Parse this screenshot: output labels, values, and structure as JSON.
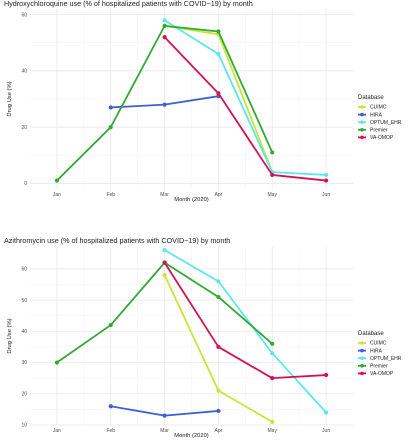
{
  "colors": {
    "CUIMC": "#c8e633",
    "HIRA": "#3f5fd3",
    "OPTUM_EHR": "#5ce7ec",
    "Premier": "#33a833",
    "VA-OMOP": "#d3134f"
  },
  "legend": {
    "title": "Database",
    "items": [
      "CUIMC",
      "HIRA",
      "OPTUM_EHR",
      "Premier",
      "VA-OMOP"
    ]
  },
  "chart_data": [
    {
      "type": "line",
      "title": "Hydroxychloroquine use (% of hospitalized patients with COVID−19) by month",
      "xlabel": "Month (2020)",
      "ylabel": "Drug Use (%)",
      "categories": [
        "Jan",
        "Feb",
        "Mar",
        "Apr",
        "May",
        "Jun"
      ],
      "ylim": [
        -2,
        62
      ],
      "yticks": [
        0,
        20,
        40,
        60
      ],
      "grid": true,
      "legend_position": "right",
      "series": [
        {
          "name": "CUIMC",
          "values": [
            null,
            null,
            56,
            53,
            4,
            null
          ]
        },
        {
          "name": "HIRA",
          "values": [
            null,
            27,
            28,
            31,
            null,
            null
          ]
        },
        {
          "name": "OPTUM_EHR",
          "values": [
            null,
            null,
            58,
            46,
            4,
            3
          ]
        },
        {
          "name": "Premier",
          "values": [
            1,
            20,
            56,
            54,
            11,
            null
          ]
        },
        {
          "name": "VA-OMOP",
          "values": [
            null,
            null,
            52,
            32,
            3,
            1
          ]
        }
      ]
    },
    {
      "type": "line",
      "title": "Azithromycin  use (% of hospitalized patients with COVID−19) by month",
      "xlabel": "Month (2020)",
      "ylabel": "Drug Use (%)",
      "categories": [
        "Jan",
        "Feb",
        "Mar",
        "Apr",
        "May",
        "Jun"
      ],
      "ylim": [
        10,
        67
      ],
      "yticks": [
        10,
        20,
        30,
        40,
        50,
        60
      ],
      "grid": true,
      "legend_position": "right",
      "series": [
        {
          "name": "CUIMC",
          "values": [
            null,
            null,
            58,
            21,
            11,
            null
          ]
        },
        {
          "name": "HIRA",
          "values": [
            null,
            16,
            13,
            14.5,
            null,
            null
          ]
        },
        {
          "name": "OPTUM_EHR",
          "values": [
            null,
            null,
            66,
            56,
            33,
            14
          ]
        },
        {
          "name": "Premier",
          "values": [
            30,
            42,
            62,
            51,
            36,
            null
          ]
        },
        {
          "name": "VA-OMOP",
          "values": [
            null,
            null,
            62,
            35,
            25,
            26
          ]
        }
      ]
    }
  ]
}
